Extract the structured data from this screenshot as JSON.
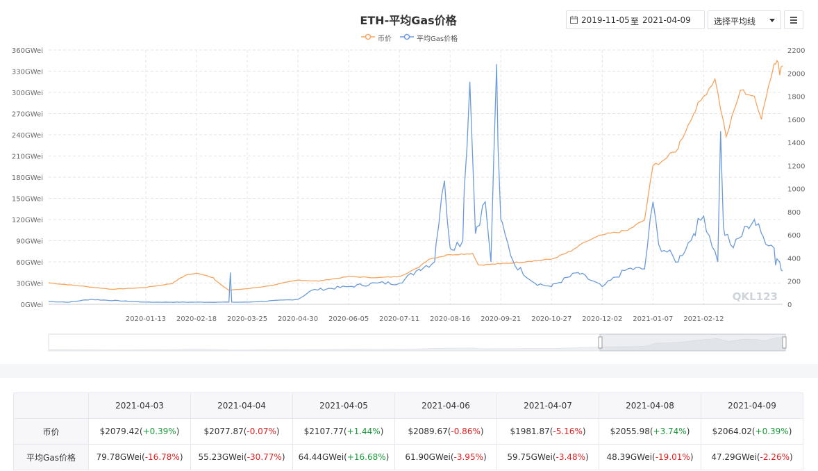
{
  "chart_panel": {
    "title": "ETH-平均Gas价格",
    "date_start": "2019-11-05",
    "date_sep": "至",
    "date_end": "2021-04-09",
    "avg_select_label": "选择平均线",
    "watermark": "QKL123"
  },
  "colors": {
    "price": "#f4a460",
    "gas": "#6b9bd8",
    "grid": "#e6e6e6"
  },
  "chart_data": {
    "type": "line",
    "title": "ETH-平均Gas价格",
    "legend": [
      "币价",
      "平均Gas价格"
    ],
    "x_tick_labels": [
      "2020-01-13",
      "2020-02-18",
      "2020-03-25",
      "2020-04-30",
      "2020-06-05",
      "2020-07-11",
      "2020-08-16",
      "2020-09-21",
      "2020-10-27",
      "2020-12-02",
      "2021-01-07",
      "2021-02-12"
    ],
    "x_range": [
      "2019-11-05",
      "2021-04-09"
    ],
    "left_axis": {
      "ticks": [
        "0GWei",
        "30GWei",
        "60GWei",
        "90GWei",
        "120GWei",
        "150GWei",
        "180GWei",
        "210GWei",
        "240GWei",
        "270GWei",
        "300GWei",
        "330GWei",
        "360GWei"
      ],
      "min": 0,
      "max": 360
    },
    "right_axis": {
      "ticks": [
        "0",
        "200",
        "400",
        "600",
        "800",
        "1000",
        "1200",
        "1400",
        "1600",
        "1800",
        "2000",
        "2200"
      ],
      "min": 0,
      "max": 2200
    },
    "series": [
      {
        "name": "币价",
        "axis": "right",
        "points": [
          [
            "2019-11-05",
            185
          ],
          [
            "2019-12-01",
            155
          ],
          [
            "2019-12-20",
            130
          ],
          [
            "2020-01-13",
            145
          ],
          [
            "2020-02-01",
            180
          ],
          [
            "2020-02-10",
            250
          ],
          [
            "2020-02-18",
            270
          ],
          [
            "2020-03-01",
            230
          ],
          [
            "2020-03-12",
            120
          ],
          [
            "2020-03-25",
            135
          ],
          [
            "2020-04-10",
            160
          ],
          [
            "2020-04-30",
            210
          ],
          [
            "2020-05-15",
            200
          ],
          [
            "2020-06-05",
            240
          ],
          [
            "2020-06-25",
            230
          ],
          [
            "2020-07-11",
            240
          ],
          [
            "2020-07-25",
            320
          ],
          [
            "2020-08-01",
            390
          ],
          [
            "2020-08-16",
            430
          ],
          [
            "2020-09-01",
            440
          ],
          [
            "2020-09-05",
            340
          ],
          [
            "2020-09-21",
            350
          ],
          [
            "2020-10-10",
            370
          ],
          [
            "2020-10-27",
            390
          ],
          [
            "2020-11-10",
            460
          ],
          [
            "2020-11-20",
            540
          ],
          [
            "2020-12-02",
            600
          ],
          [
            "2020-12-20",
            640
          ],
          [
            "2021-01-01",
            730
          ],
          [
            "2021-01-07",
            1200
          ],
          [
            "2021-01-15",
            1250
          ],
          [
            "2021-01-25",
            1350
          ],
          [
            "2021-02-05",
            1650
          ],
          [
            "2021-02-12",
            1800
          ],
          [
            "2021-02-20",
            1950
          ],
          [
            "2021-02-28",
            1450
          ],
          [
            "2021-03-10",
            1850
          ],
          [
            "2021-03-20",
            1800
          ],
          [
            "2021-03-25",
            1600
          ],
          [
            "2021-04-03",
            2079.42
          ],
          [
            "2021-04-04",
            2077.87
          ],
          [
            "2021-04-05",
            2107.77
          ],
          [
            "2021-04-06",
            2089.67
          ],
          [
            "2021-04-07",
            1981.87
          ],
          [
            "2021-04-08",
            2055.98
          ],
          [
            "2021-04-09",
            2064.02
          ]
        ]
      },
      {
        "name": "平均Gas价格",
        "axis": "left",
        "points": [
          [
            "2019-11-05",
            4
          ],
          [
            "2019-11-20",
            3
          ],
          [
            "2019-12-05",
            7
          ],
          [
            "2020-01-13",
            3
          ],
          [
            "2020-02-18",
            3
          ],
          [
            "2020-03-12",
            3
          ],
          [
            "2020-03-13",
            45
          ],
          [
            "2020-03-14",
            3
          ],
          [
            "2020-03-25",
            3
          ],
          [
            "2020-04-30",
            7
          ],
          [
            "2020-05-10",
            20
          ],
          [
            "2020-06-05",
            25
          ],
          [
            "2020-06-25",
            30
          ],
          [
            "2020-07-11",
            30
          ],
          [
            "2020-07-25",
            50
          ],
          [
            "2020-08-05",
            60
          ],
          [
            "2020-08-12",
            175
          ],
          [
            "2020-08-16",
            80
          ],
          [
            "2020-08-25",
            90
          ],
          [
            "2020-08-30",
            315
          ],
          [
            "2020-09-03",
            100
          ],
          [
            "2020-09-10",
            145
          ],
          [
            "2020-09-14",
            60
          ],
          [
            "2020-09-18",
            340
          ],
          [
            "2020-09-21",
            120
          ],
          [
            "2020-09-30",
            60
          ],
          [
            "2020-10-15",
            30
          ],
          [
            "2020-10-27",
            25
          ],
          [
            "2020-11-15",
            45
          ],
          [
            "2020-12-02",
            25
          ],
          [
            "2020-12-20",
            50
          ],
          [
            "2021-01-01",
            50
          ],
          [
            "2021-01-07",
            145
          ],
          [
            "2021-01-11",
            85
          ],
          [
            "2021-01-25",
            60
          ],
          [
            "2021-02-05",
            100
          ],
          [
            "2021-02-12",
            125
          ],
          [
            "2021-02-22",
            60
          ],
          [
            "2021-02-24",
            245
          ],
          [
            "2021-02-26",
            110
          ],
          [
            "2021-03-05",
            80
          ],
          [
            "2021-03-15",
            110
          ],
          [
            "2021-03-20",
            120
          ],
          [
            "2021-03-25",
            100
          ],
          [
            "2021-04-03",
            79.78
          ],
          [
            "2021-04-04",
            55.23
          ],
          [
            "2021-04-05",
            64.44
          ],
          [
            "2021-04-06",
            61.9
          ],
          [
            "2021-04-07",
            59.75
          ],
          [
            "2021-04-08",
            48.39
          ],
          [
            "2021-04-09",
            47.29
          ]
        ]
      }
    ]
  },
  "table": {
    "dates": [
      "2021-04-03",
      "2021-04-04",
      "2021-04-05",
      "2021-04-06",
      "2021-04-07",
      "2021-04-08",
      "2021-04-09"
    ],
    "rows": [
      {
        "label": "币价",
        "cells": [
          {
            "value": "$2079.42",
            "change": "+0.39%",
            "dir": "up"
          },
          {
            "value": "$2077.87",
            "change": "-0.07%",
            "dir": "down"
          },
          {
            "value": "$2107.77",
            "change": "+1.44%",
            "dir": "up"
          },
          {
            "value": "$2089.67",
            "change": "-0.86%",
            "dir": "down"
          },
          {
            "value": "$1981.87",
            "change": "-5.16%",
            "dir": "down"
          },
          {
            "value": "$2055.98",
            "change": "+3.74%",
            "dir": "up"
          },
          {
            "value": "$2064.02",
            "change": "+0.39%",
            "dir": "up"
          }
        ]
      },
      {
        "label": "平均Gas价格",
        "cells": [
          {
            "value": "79.78GWei",
            "change": "-16.78%",
            "dir": "down"
          },
          {
            "value": "55.23GWei",
            "change": "-30.77%",
            "dir": "down"
          },
          {
            "value": "64.44GWei",
            "change": "+16.68%",
            "dir": "up"
          },
          {
            "value": "61.90GWei",
            "change": "-3.95%",
            "dir": "down"
          },
          {
            "value": "59.75GWei",
            "change": "-3.48%",
            "dir": "down"
          },
          {
            "value": "48.39GWei",
            "change": "-19.01%",
            "dir": "down"
          },
          {
            "value": "47.29GWei",
            "change": "-2.26%",
            "dir": "down"
          }
        ]
      }
    ]
  }
}
